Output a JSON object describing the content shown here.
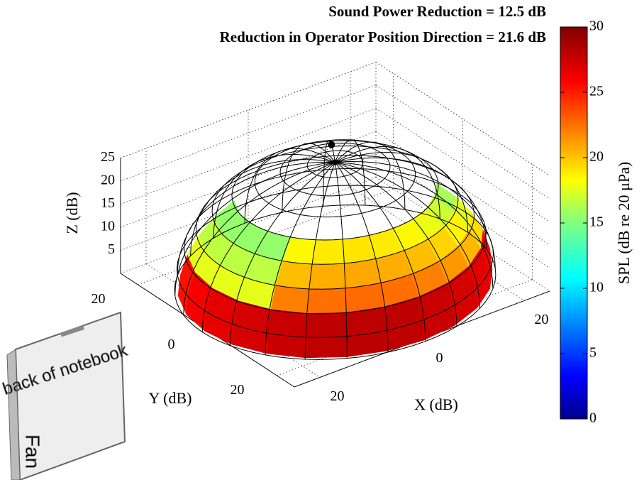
{
  "chart_data": {
    "type": "surface3d",
    "title": [
      "Sound Power Reduction = 12.5 dB",
      "Reduction in Operator Position Direction = 21.6 dB"
    ],
    "xlabel": "X (dB)",
    "ylabel": "Y (dB)",
    "zlabel": "Z (dB)",
    "xlim": [
      -25,
      25
    ],
    "ylim": [
      -25,
      25
    ],
    "zlim": [
      0,
      25
    ],
    "xticks": [
      {
        "value": -20,
        "label": "20"
      },
      0,
      20
    ],
    "yticks": [
      {
        "value": -20,
        "label": "20"
      },
      0,
      20
    ],
    "zticks": [
      5,
      10,
      15,
      20,
      25
    ],
    "colorbar": {
      "label": "SPL (dB re 20 μPa)",
      "lim": [
        0,
        30
      ],
      "ticks": [
        0,
        5,
        10,
        15,
        20,
        25,
        30
      ],
      "colormap": "jet"
    },
    "inset": {
      "label": "back of notebook",
      "fan": "Fan"
    }
  }
}
